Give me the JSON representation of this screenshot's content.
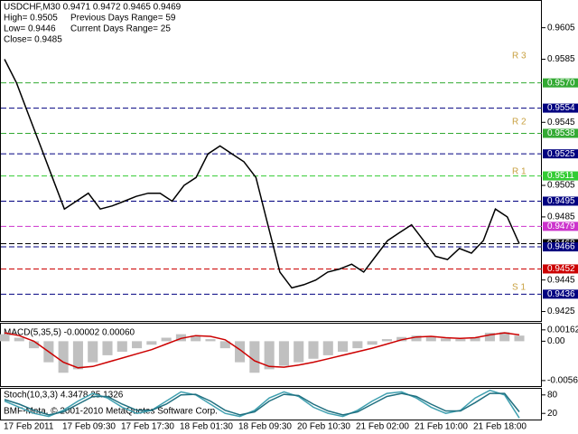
{
  "chart_data": [
    {
      "type": "line",
      "title": "USDCHF,M30 0.9471 0.9472 0.9465 0.9469",
      "info": [
        "High= 0.9505",
        "Previous Days Range= 59",
        "Low= 0.9446",
        "Current Days Range= 25",
        "Close= 0.9485"
      ],
      "x_labels": [
        "17 Feb 2011",
        "17 Feb 09:30",
        "17 Feb 17:30",
        "18 Feb 01:30",
        "18 Feb 09:30",
        "20 Feb 10:30",
        "21 Feb 02:00",
        "21 Feb 10:00",
        "21 Feb 18:00"
      ],
      "series": [
        {
          "name": "USDCHF",
          "color": "#000000",
          "values": [
            0.9585,
            0.957,
            0.955,
            0.953,
            0.951,
            0.949,
            0.9495,
            0.95,
            0.949,
            0.9492,
            0.9495,
            0.9498,
            0.95,
            0.95,
            0.9495,
            0.9505,
            0.951,
            0.9525,
            0.953,
            0.9525,
            0.952,
            0.951,
            0.948,
            0.945,
            0.944,
            0.9442,
            0.9445,
            0.945,
            0.9452,
            0.9455,
            0.945,
            0.946,
            0.947,
            0.9475,
            0.948,
            0.947,
            0.946,
            0.9458,
            0.9465,
            0.9462,
            0.947,
            0.949,
            0.9485,
            0.9468
          ]
        }
      ],
      "ylim": [
        0.9419,
        0.9622
      ],
      "yticks": [
        0.9605,
        0.9585,
        0.9545,
        0.9505,
        0.9485,
        0.9445,
        0.9425
      ],
      "levels": [
        {
          "value": 0.957,
          "label": "0.9570",
          "color": "#33aa33"
        },
        {
          "value": 0.9554,
          "label": "0.9554",
          "color": "#000080"
        },
        {
          "value": 0.9538,
          "label": "0.9538",
          "color": "#33aa33"
        },
        {
          "value": 0.9525,
          "label": "0.9525",
          "color": "#000080"
        },
        {
          "value": 0.9511,
          "label": "0.9511",
          "color": "#33cc33"
        },
        {
          "value": 0.9495,
          "label": "0.9495",
          "color": "#000080"
        },
        {
          "value": 0.9479,
          "label": "0.9479",
          "color": "#cc33cc"
        },
        {
          "value": 0.9468,
          "label": "0.9468",
          "color": "#000000"
        },
        {
          "value": 0.9466,
          "label": "0.9466",
          "color": "#000080"
        },
        {
          "value": 0.9452,
          "label": "0.9452",
          "color": "#cc0000"
        },
        {
          "value": 0.9436,
          "label": "0.9436",
          "color": "#000080"
        }
      ],
      "pivot_labels": [
        "R 3",
        "R 2",
        "R 1",
        "S 1"
      ]
    },
    {
      "type": "bar",
      "title": "MACD(5,35,5) -0.00002 0.00060",
      "series": [
        {
          "name": "MACD",
          "color": "#c0c0c0",
          "values": [
            0.001,
            0.0005,
            -0.001,
            -0.003,
            -0.0045,
            -0.004,
            -0.003,
            -0.002,
            -0.0015,
            -0.001,
            -0.0005,
            0.0005,
            0.001,
            0.0008,
            0.0003,
            -0.001,
            -0.003,
            -0.0045,
            -0.004,
            -0.0035,
            -0.003,
            -0.0025,
            -0.002,
            -0.0015,
            -0.001,
            -0.0005,
            0.0003,
            0.0006,
            0.0008,
            0.0006,
            0.0004,
            0.0003,
            0.0005,
            0.0012,
            0.0013,
            0.0008
          ]
        },
        {
          "name": "Signal",
          "color": "#cc0000",
          "values": [
            0.0012,
            0.0008,
            0.0,
            -0.0015,
            -0.003,
            -0.0038,
            -0.0036,
            -0.003,
            -0.0024,
            -0.0018,
            -0.0012,
            -0.0004,
            0.0004,
            0.0008,
            0.0007,
            0.0002,
            -0.0012,
            -0.0028,
            -0.0036,
            -0.0037,
            -0.0034,
            -0.003,
            -0.0025,
            -0.002,
            -0.0015,
            -0.001,
            -0.0004,
            0.0002,
            0.0006,
            0.0007,
            0.0005,
            0.0004,
            0.0005,
            0.0009,
            0.0012,
            0.0009
          ]
        }
      ],
      "ylim": [
        -0.0064,
        0.0025
      ],
      "yticks": [
        {
          "value": 0.00162,
          "label": "0.00162"
        },
        {
          "value": 0,
          "label": "0.00"
        },
        {
          "value": -0.00561,
          "label": "-0.00561"
        }
      ]
    },
    {
      "type": "line",
      "title": "Stoch(10,3,3) 4.3478 25.1326",
      "watermark": "BMF-Meta, © 2001-2010 MetaQuotes Software Corp.",
      "series": [
        {
          "name": "Main",
          "color": "#40a0b0",
          "values": [
            60,
            40,
            20,
            10,
            30,
            60,
            85,
            70,
            40,
            20,
            30,
            60,
            90,
            80,
            50,
            20,
            10,
            30,
            70,
            90,
            75,
            40,
            20,
            10,
            30,
            60,
            85,
            90,
            70,
            40,
            20,
            30,
            70,
            95,
            80,
            5
          ]
        },
        {
          "name": "Signal",
          "color": "#207080",
          "values": [
            65,
            50,
            30,
            15,
            25,
            50,
            75,
            75,
            50,
            30,
            30,
            50,
            80,
            82,
            60,
            30,
            15,
            25,
            60,
            82,
            78,
            50,
            28,
            15,
            25,
            50,
            75,
            85,
            75,
            50,
            28,
            28,
            55,
            85,
            85,
            25
          ]
        }
      ],
      "ylim": [
        0,
        100
      ],
      "yticks": [
        80,
        20
      ]
    }
  ]
}
